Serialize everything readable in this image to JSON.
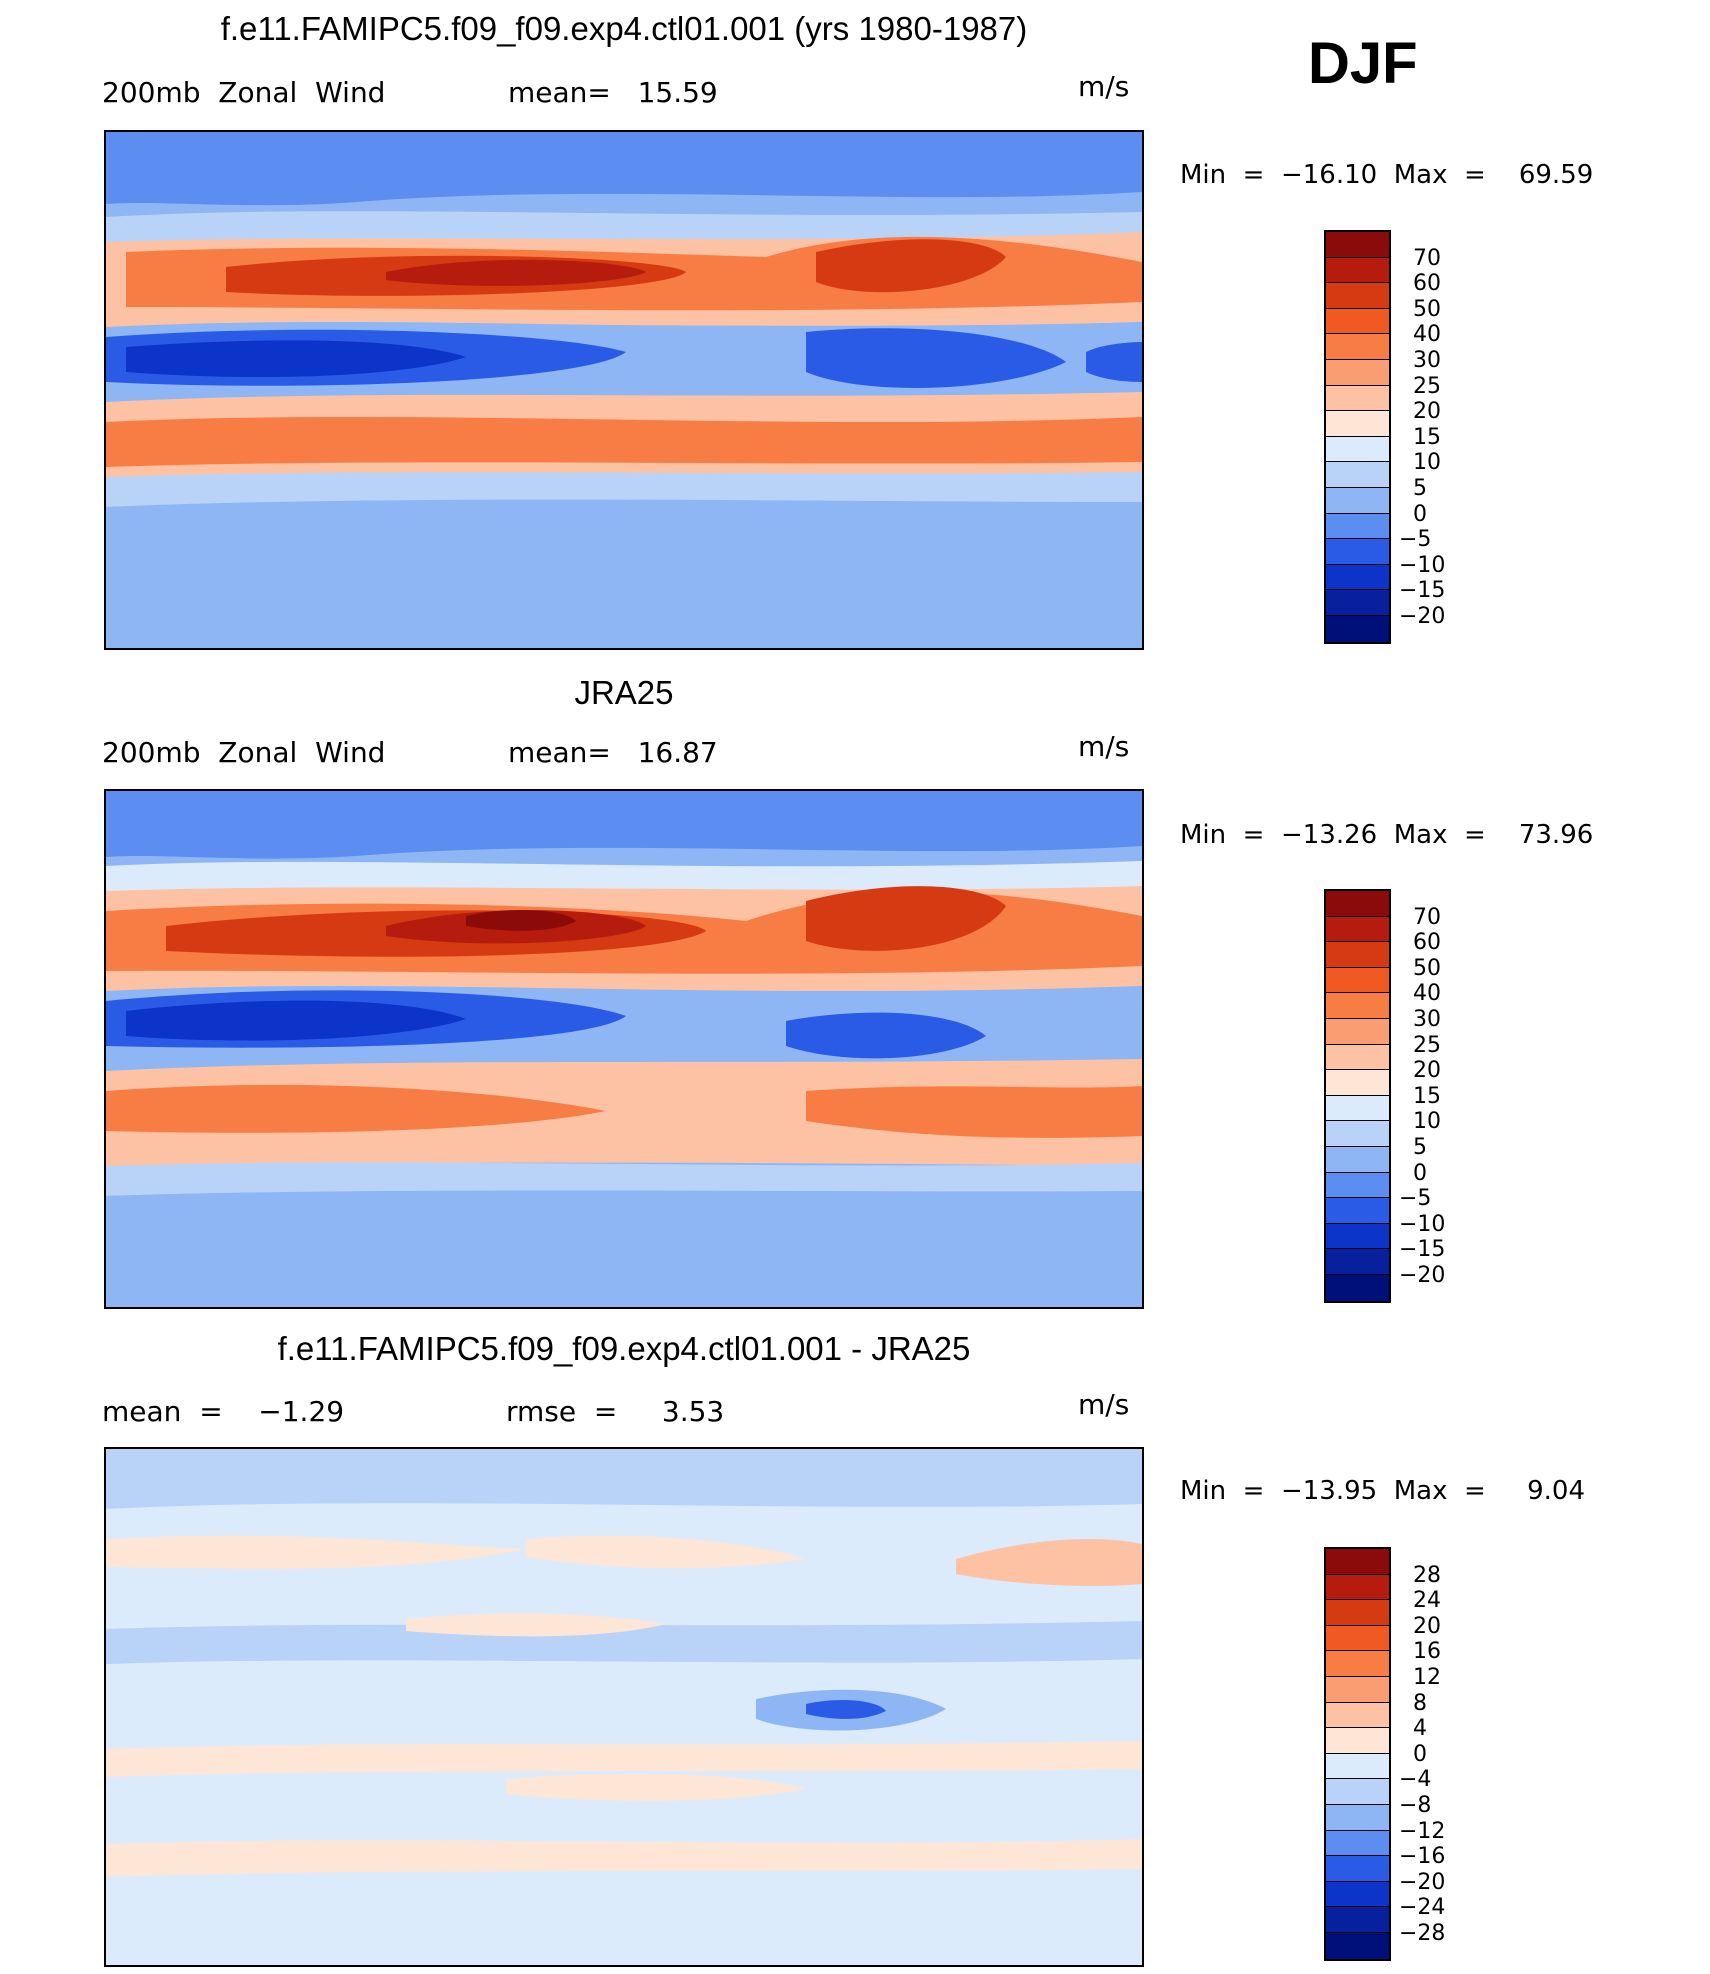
{
  "season": "DJF",
  "panels": [
    {
      "title": "f.e11.FAMIPC5.f09_f09.exp4.ctl01.001 (yrs 1980-1987)",
      "left_text": "200mb  Zonal  Wind",
      "mid_text": "mean=   15.59",
      "units": "m/s",
      "minmax": "Min  =  −16.10  Max  =    69.59",
      "colorbar": {
        "labels": [
          "70",
          "60",
          "50",
          "40",
          "30",
          "25",
          "20",
          "15",
          "10",
          "5",
          "0",
          "−5",
          "−10",
          "−15",
          "−20"
        ],
        "colors": [
          "#8b0a0a",
          "#b51c0e",
          "#d63a12",
          "#f05a22",
          "#f77d45",
          "#fa9d73",
          "#fdc2a3",
          "#fde6d6",
          "#dcebfb",
          "#b8d2f8",
          "#8eb6f4",
          "#5b8ef0",
          "#2a5be6",
          "#0c34c8",
          "#06209e",
          "#00107a"
        ]
      }
    },
    {
      "title": "JRA25",
      "left_text": "200mb  Zonal  Wind",
      "mid_text": "mean=   16.87",
      "units": "m/s",
      "minmax": "Min  =  −13.26  Max  =    73.96",
      "colorbar": {
        "labels": [
          "70",
          "60",
          "50",
          "40",
          "30",
          "25",
          "20",
          "15",
          "10",
          "5",
          "0",
          "−5",
          "−10",
          "−15",
          "−20"
        ],
        "colors": [
          "#8b0a0a",
          "#b51c0e",
          "#d63a12",
          "#f05a22",
          "#f77d45",
          "#fa9d73",
          "#fdc2a3",
          "#fde6d6",
          "#dcebfb",
          "#b8d2f8",
          "#8eb6f4",
          "#5b8ef0",
          "#2a5be6",
          "#0c34c8",
          "#06209e",
          "#00107a"
        ]
      }
    },
    {
      "title": "f.e11.FAMIPC5.f09_f09.exp4.ctl01.001 - JRA25",
      "left_text": "mean  =    −1.29",
      "mid_text": "rmse  =     3.53",
      "units": "m/s",
      "minmax": "Min  =  −13.95  Max  =     9.04",
      "colorbar": {
        "labels": [
          "28",
          "24",
          "20",
          "16",
          "12",
          "8",
          "4",
          "0",
          "−4",
          "−8",
          "−12",
          "−16",
          "−20",
          "−24",
          "−28"
        ],
        "colors": [
          "#8b0a0a",
          "#b51c0e",
          "#d63a12",
          "#f05a22",
          "#f77d45",
          "#fa9d73",
          "#fdc2a3",
          "#fde6d6",
          "#dcebfb",
          "#b8d2f8",
          "#8eb6f4",
          "#5b8ef0",
          "#2a5be6",
          "#0c34c8",
          "#06209e",
          "#00107a"
        ]
      }
    }
  ]
}
